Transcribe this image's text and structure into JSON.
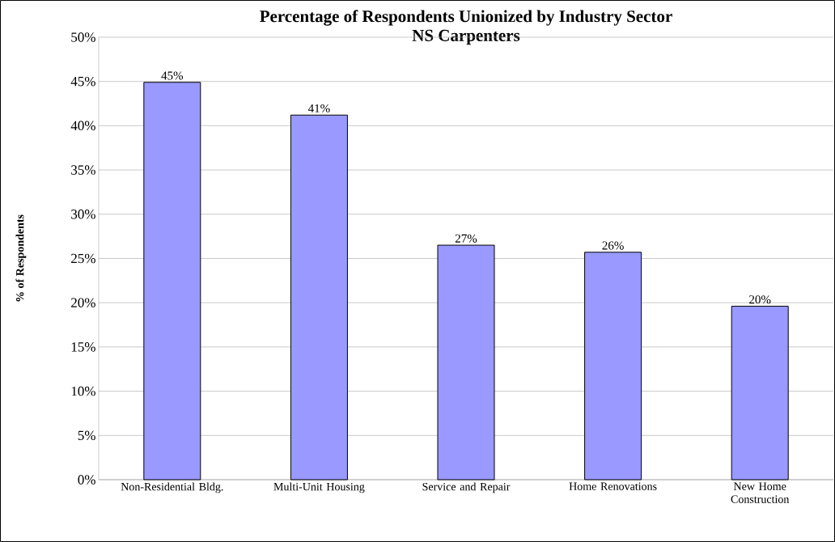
{
  "chart_data": {
    "type": "bar",
    "title": "Percentage of Respondents Unionized by Industry Sector",
    "subtitle": "NS Carpenters",
    "ylabel": "% of Respondents",
    "categories": [
      "Non-Residential Bldg.",
      "Multi-Unit Housing",
      "Service and Repair",
      "Home Renovations",
      "New Home Construction"
    ],
    "values": [
      44.9,
      41.2,
      26.5,
      25.7,
      19.6
    ],
    "value_labels": [
      "45%",
      "41%",
      "27%",
      "26%",
      "20%"
    ],
    "color": "#9999ff",
    "ylim": [
      0,
      50
    ],
    "yticks": [
      {
        "value": 0,
        "label": "0%"
      },
      {
        "value": 5,
        "label": "5%"
      },
      {
        "value": 10,
        "label": "10%"
      },
      {
        "value": 15,
        "label": "15%"
      },
      {
        "value": 20,
        "label": "20%"
      },
      {
        "value": 25,
        "label": "25%"
      },
      {
        "value": 30,
        "label": "30%"
      },
      {
        "value": 35,
        "label": "35%"
      },
      {
        "value": 40,
        "label": "40%"
      },
      {
        "value": 45,
        "label": "45%"
      },
      {
        "value": 50,
        "label": "50%"
      }
    ],
    "grid": "y"
  }
}
